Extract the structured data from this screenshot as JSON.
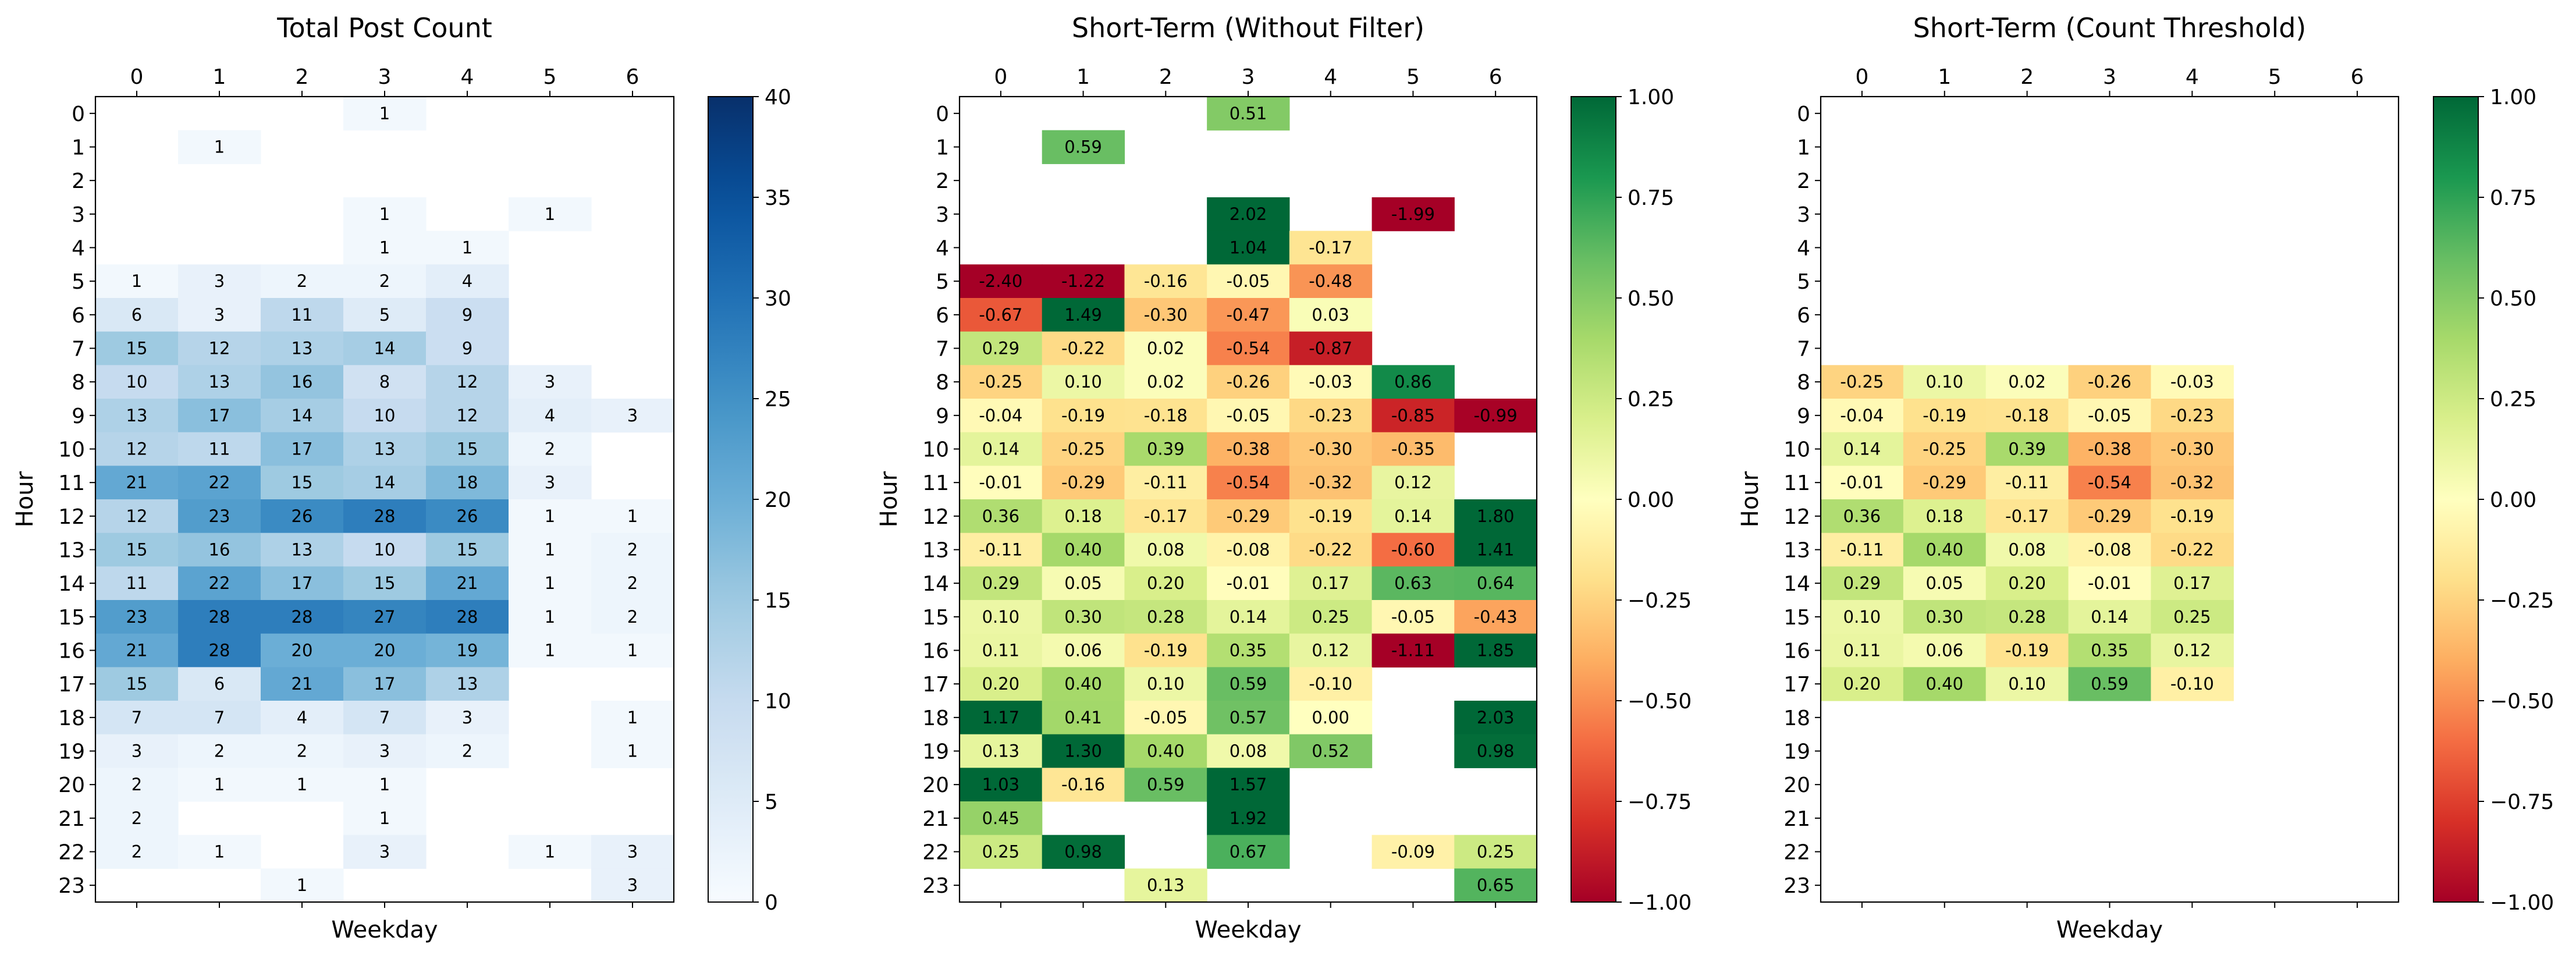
{
  "chart_data": [
    {
      "type": "heatmap",
      "title": "Total Post Count",
      "xlabel": "Weekday",
      "ylabel": "Hour",
      "x_ticks": [
        "0",
        "1",
        "2",
        "3",
        "4",
        "5",
        "6"
      ],
      "y_ticks": [
        "0",
        "1",
        "2",
        "3",
        "4",
        "5",
        "6",
        "7",
        "8",
        "9",
        "10",
        "11",
        "12",
        "13",
        "14",
        "15",
        "16",
        "17",
        "18",
        "19",
        "20",
        "21",
        "22",
        "23"
      ],
      "colormap": "Blues",
      "vmin": 0,
      "vmax": 40,
      "colorbar_ticks": [
        "0",
        "5",
        "10",
        "15",
        "20",
        "25",
        "30",
        "35",
        "40"
      ],
      "label_format": "int",
      "values": [
        [
          null,
          null,
          null,
          1,
          null,
          null,
          null
        ],
        [
          null,
          1,
          null,
          null,
          null,
          null,
          null
        ],
        [
          null,
          null,
          null,
          null,
          null,
          null,
          null
        ],
        [
          null,
          null,
          null,
          1,
          null,
          1,
          null
        ],
        [
          null,
          null,
          null,
          1,
          1,
          null,
          null
        ],
        [
          1,
          3,
          2,
          2,
          4,
          null,
          null
        ],
        [
          6,
          3,
          11,
          5,
          9,
          null,
          null
        ],
        [
          15,
          12,
          13,
          14,
          9,
          null,
          null
        ],
        [
          10,
          13,
          16,
          8,
          12,
          3,
          null
        ],
        [
          13,
          17,
          14,
          10,
          12,
          4,
          3
        ],
        [
          12,
          11,
          17,
          13,
          15,
          2,
          null
        ],
        [
          21,
          22,
          15,
          14,
          18,
          3,
          null
        ],
        [
          12,
          23,
          26,
          28,
          26,
          1,
          1
        ],
        [
          15,
          16,
          13,
          10,
          15,
          1,
          2
        ],
        [
          11,
          22,
          17,
          15,
          21,
          1,
          2
        ],
        [
          23,
          28,
          28,
          27,
          28,
          1,
          2
        ],
        [
          21,
          28,
          20,
          20,
          19,
          1,
          1
        ],
        [
          15,
          6,
          21,
          17,
          13,
          null,
          null
        ],
        [
          7,
          7,
          4,
          7,
          3,
          null,
          1
        ],
        [
          3,
          2,
          2,
          3,
          2,
          null,
          1
        ],
        [
          2,
          1,
          1,
          1,
          null,
          null,
          null
        ],
        [
          2,
          null,
          null,
          1,
          null,
          null,
          null
        ],
        [
          2,
          1,
          null,
          3,
          null,
          1,
          3
        ],
        [
          null,
          null,
          1,
          null,
          null,
          null,
          3
        ]
      ]
    },
    {
      "type": "heatmap",
      "title": "Short-Term (Without Filter)",
      "xlabel": "Weekday",
      "ylabel": "Hour",
      "x_ticks": [
        "0",
        "1",
        "2",
        "3",
        "4",
        "5",
        "6"
      ],
      "y_ticks": [
        "0",
        "1",
        "2",
        "3",
        "4",
        "5",
        "6",
        "7",
        "8",
        "9",
        "10",
        "11",
        "12",
        "13",
        "14",
        "15",
        "16",
        "17",
        "18",
        "19",
        "20",
        "21",
        "22",
        "23"
      ],
      "colormap": "RdYlGn",
      "vmin": -1,
      "vmax": 1,
      "colorbar_ticks": [
        "1.00",
        "0.75",
        "0.50",
        "0.25",
        "0.00",
        "−0.25",
        "−0.50",
        "−0.75",
        "−1.00"
      ],
      "label_format": "2f",
      "values": [
        [
          null,
          null,
          null,
          0.51,
          null,
          null,
          null
        ],
        [
          null,
          0.59,
          null,
          null,
          null,
          null,
          null
        ],
        [
          null,
          null,
          null,
          null,
          null,
          null,
          null
        ],
        [
          null,
          null,
          null,
          2.02,
          null,
          -1.99,
          null
        ],
        [
          null,
          null,
          null,
          1.04,
          -0.17,
          null,
          null
        ],
        [
          -2.4,
          -1.22,
          -0.16,
          -0.05,
          -0.48,
          null,
          null
        ],
        [
          -0.67,
          1.49,
          -0.3,
          -0.47,
          0.03,
          null,
          null
        ],
        [
          0.29,
          -0.22,
          0.02,
          -0.54,
          -0.87,
          null,
          null
        ],
        [
          -0.25,
          0.1,
          0.02,
          -0.26,
          -0.03,
          0.86,
          null
        ],
        [
          -0.04,
          -0.19,
          -0.18,
          -0.05,
          -0.23,
          -0.85,
          -0.99
        ],
        [
          0.14,
          -0.25,
          0.39,
          -0.38,
          -0.3,
          -0.35,
          null
        ],
        [
          -0.01,
          -0.29,
          -0.11,
          -0.54,
          -0.32,
          0.12,
          null
        ],
        [
          0.36,
          0.18,
          -0.17,
          -0.29,
          -0.19,
          0.14,
          1.8
        ],
        [
          -0.11,
          0.4,
          0.08,
          -0.08,
          -0.22,
          -0.6,
          1.41
        ],
        [
          0.29,
          0.05,
          0.2,
          -0.01,
          0.17,
          0.63,
          0.64
        ],
        [
          0.1,
          0.3,
          0.28,
          0.14,
          0.25,
          -0.05,
          -0.43
        ],
        [
          0.11,
          0.06,
          -0.19,
          0.35,
          0.12,
          -1.11,
          1.85
        ],
        [
          0.2,
          0.4,
          0.1,
          0.59,
          -0.1,
          null,
          null
        ],
        [
          1.17,
          0.41,
          -0.05,
          0.57,
          0.0,
          null,
          2.03
        ],
        [
          0.13,
          1.3,
          0.4,
          0.08,
          0.52,
          null,
          0.98
        ],
        [
          1.03,
          -0.16,
          0.59,
          1.57,
          null,
          null,
          null
        ],
        [
          0.45,
          null,
          null,
          1.92,
          null,
          null,
          null
        ],
        [
          0.25,
          0.98,
          null,
          0.67,
          null,
          -0.09,
          0.25
        ],
        [
          null,
          null,
          0.13,
          null,
          null,
          null,
          0.65
        ]
      ]
    },
    {
      "type": "heatmap",
      "title": "Short-Term (Count Threshold)",
      "xlabel": "Weekday",
      "ylabel": "Hour",
      "x_ticks": [
        "0",
        "1",
        "2",
        "3",
        "4",
        "5",
        "6"
      ],
      "y_ticks": [
        "0",
        "1",
        "2",
        "3",
        "4",
        "5",
        "6",
        "7",
        "8",
        "9",
        "10",
        "11",
        "12",
        "13",
        "14",
        "15",
        "16",
        "17",
        "18",
        "19",
        "20",
        "21",
        "22",
        "23"
      ],
      "colormap": "RdYlGn",
      "vmin": -1,
      "vmax": 1,
      "colorbar_ticks": [
        "1.00",
        "0.75",
        "0.50",
        "0.25",
        "0.00",
        "−0.25",
        "−0.50",
        "−0.75",
        "−1.00"
      ],
      "label_format": "2f",
      "values": [
        [
          null,
          null,
          null,
          null,
          null,
          null,
          null
        ],
        [
          null,
          null,
          null,
          null,
          null,
          null,
          null
        ],
        [
          null,
          null,
          null,
          null,
          null,
          null,
          null
        ],
        [
          null,
          null,
          null,
          null,
          null,
          null,
          null
        ],
        [
          null,
          null,
          null,
          null,
          null,
          null,
          null
        ],
        [
          null,
          null,
          null,
          null,
          null,
          null,
          null
        ],
        [
          null,
          null,
          null,
          null,
          null,
          null,
          null
        ],
        [
          null,
          null,
          null,
          null,
          null,
          null,
          null
        ],
        [
          -0.25,
          0.1,
          0.02,
          -0.26,
          -0.03,
          null,
          null
        ],
        [
          -0.04,
          -0.19,
          -0.18,
          -0.05,
          -0.23,
          null,
          null
        ],
        [
          0.14,
          -0.25,
          0.39,
          -0.38,
          -0.3,
          null,
          null
        ],
        [
          -0.01,
          -0.29,
          -0.11,
          -0.54,
          -0.32,
          null,
          null
        ],
        [
          0.36,
          0.18,
          -0.17,
          -0.29,
          -0.19,
          null,
          null
        ],
        [
          -0.11,
          0.4,
          0.08,
          -0.08,
          -0.22,
          null,
          null
        ],
        [
          0.29,
          0.05,
          0.2,
          -0.01,
          0.17,
          null,
          null
        ],
        [
          0.1,
          0.3,
          0.28,
          0.14,
          0.25,
          null,
          null
        ],
        [
          0.11,
          0.06,
          -0.19,
          0.35,
          0.12,
          null,
          null
        ],
        [
          0.2,
          0.4,
          0.1,
          0.59,
          -0.1,
          null,
          null
        ],
        [
          null,
          null,
          null,
          null,
          null,
          null,
          null
        ],
        [
          null,
          null,
          null,
          null,
          null,
          null,
          null
        ],
        [
          null,
          null,
          null,
          null,
          null,
          null,
          null
        ],
        [
          null,
          null,
          null,
          null,
          null,
          null,
          null
        ],
        [
          null,
          null,
          null,
          null,
          null,
          null,
          null
        ],
        [
          null,
          null,
          null,
          null,
          null,
          null,
          null
        ]
      ]
    }
  ]
}
